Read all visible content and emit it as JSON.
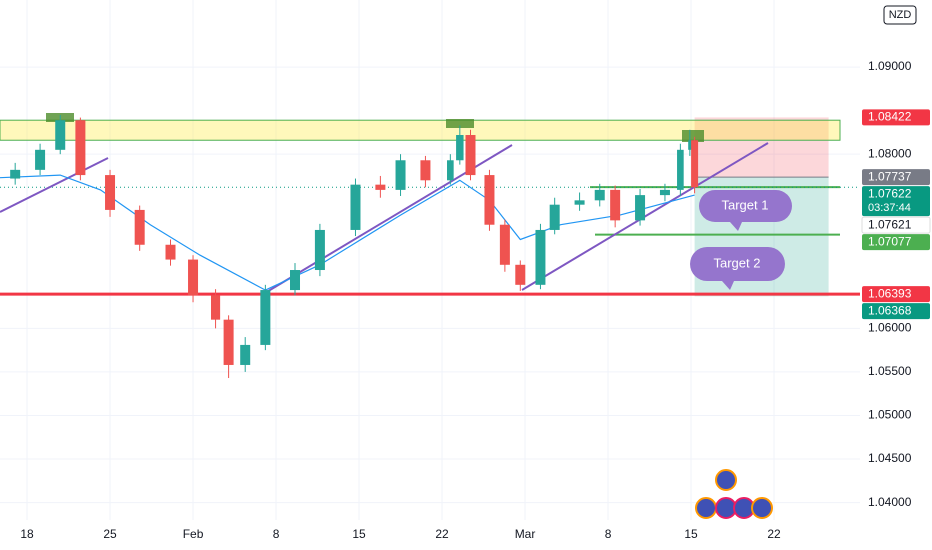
{
  "chart_data": {
    "type": "candlestick",
    "currency": "NZD",
    "x": [
      -1.0,
      1.1,
      2.8,
      4.5,
      7.0,
      9.5,
      12.1,
      14.0,
      15.9,
      17.0,
      18.4,
      20.1,
      22.6,
      24.7,
      27.7,
      29.8,
      31.5,
      33.6,
      35.7,
      36.5,
      37.4,
      39.0,
      40.3,
      41.6,
      43.3,
      44.5,
      46.6,
      48.3,
      49.6,
      51.7,
      53.8,
      55.1,
      55.9,
      56.3
    ],
    "open": [
      1.0772,
      1.0782,
      1.0805,
      1.0839,
      1.0776,
      1.0736,
      1.0696,
      1.0679,
      1.0638,
      1.061,
      1.0558,
      1.0581,
      1.0644,
      1.0667,
      1.0713,
      1.0765,
      1.0759,
      1.0793,
      1.077,
      1.0793,
      1.0822,
      1.0776,
      1.0719,
      1.0673,
      1.065,
      1.0713,
      1.0742,
      1.0747,
      1.0759,
      1.0724,
      1.0753,
      1.0759,
      1.0805,
      1.0816
    ],
    "high": [
      1.079,
      1.0812,
      1.0845,
      1.0842,
      1.0782,
      1.0741,
      1.0702,
      1.0684,
      1.0645,
      1.0615,
      1.059,
      1.065,
      1.0675,
      1.072,
      1.0772,
      1.0775,
      1.08,
      1.0798,
      1.08,
      1.0833,
      1.0828,
      1.0782,
      1.0725,
      1.0678,
      1.072,
      1.075,
      1.0756,
      1.0766,
      1.0764,
      1.076,
      1.0766,
      1.0812,
      1.0828,
      1.082
    ],
    "low": [
      1.0765,
      1.0776,
      1.08,
      1.077,
      1.0728,
      1.0689,
      1.0672,
      1.063,
      1.06,
      1.0543,
      1.055,
      1.0575,
      1.0638,
      1.066,
      1.0706,
      1.075,
      1.0752,
      1.0762,
      1.0765,
      1.0788,
      1.077,
      1.0712,
      1.0665,
      1.0643,
      1.0645,
      1.0708,
      1.0735,
      1.074,
      1.0716,
      1.0718,
      1.0746,
      1.0752,
      1.0798,
      1.0755
    ],
    "close": [
      1.0782,
      1.0805,
      1.0839,
      1.0776,
      1.0736,
      1.0696,
      1.0679,
      1.0638,
      1.061,
      1.0558,
      1.0581,
      1.0644,
      1.0667,
      1.0713,
      1.0765,
      1.0759,
      1.0793,
      1.077,
      1.0793,
      1.0822,
      1.0776,
      1.0719,
      1.0673,
      1.065,
      1.0713,
      1.0742,
      1.0747,
      1.0759,
      1.0724,
      1.0753,
      1.0759,
      1.0805,
      1.0816,
      1.0762
    ],
    "up_color": "#26a69a",
    "down_color": "#ef5350",
    "moving_average": {
      "color": "#2196f3",
      "x": [
        -2.3,
        2.8,
        6.2,
        10.4,
        14.6,
        20.1,
        24.7,
        31.5,
        36.5,
        39.0,
        41.6,
        45.0,
        50.0,
        56.3
      ],
      "values": [
        1.0773,
        1.0776,
        1.0759,
        1.0719,
        1.0684,
        1.0644,
        1.0673,
        1.073,
        1.077,
        1.0747,
        1.0702,
        1.0719,
        1.073,
        1.0753
      ]
    },
    "resistance_zone": [
      1.0816,
      1.0839
    ],
    "support_level": 1.06393,
    "levels": [
      1.07622,
      1.07077
    ],
    "position": {
      "x": [
        56.3,
        67.6
      ],
      "stop": 1.08422,
      "entry": 1.07737,
      "target": 1.06368
    },
    "annotations": [
      "Target 1",
      "Target 2"
    ],
    "xlim": [
      -2.28,
      70.25
    ],
    "ylim": [
      1.038,
      1.0977
    ],
    "xticks": [
      {
        "value": 0,
        "label": "18"
      },
      {
        "value": 7,
        "label": "25"
      },
      {
        "value": 14,
        "label": "Feb"
      },
      {
        "value": 21,
        "label": "8"
      },
      {
        "value": 28,
        "label": "15"
      },
      {
        "value": 35,
        "label": "22"
      },
      {
        "value": 42,
        "label": "Mar"
      },
      {
        "value": 49,
        "label": "8"
      },
      {
        "value": 56,
        "label": "15"
      },
      {
        "value": 63,
        "label": "22"
      }
    ],
    "yticks": [
      {
        "value": 1.04,
        "label": "1.04000"
      },
      {
        "value": 1.045,
        "label": "1.04500"
      },
      {
        "value": 1.05,
        "label": "1.05000"
      },
      {
        "value": 1.055,
        "label": "1.05500"
      },
      {
        "value": 1.06,
        "label": "1.06000"
      },
      {
        "value": 1.08,
        "label": "1.08000"
      },
      {
        "value": 1.09,
        "label": "1.09000"
      }
    ],
    "price_labels": [
      {
        "value": 1.08422,
        "label": "1.08422",
        "color": "#f23645"
      },
      {
        "value": 1.07737,
        "label": "1.07737",
        "color": "#787b86"
      },
      {
        "value": 1.07622,
        "label": "1.07622",
        "color": "#089981",
        "countdown": "03:37:44"
      },
      {
        "value": 1.07621,
        "label": "1.07621",
        "color": "#ffffff"
      },
      {
        "value": 1.07077,
        "label": "1.07077",
        "color": "#4caf50"
      },
      {
        "value": 1.06393,
        "label": "1.06393",
        "color": "#f23645"
      },
      {
        "value": 1.06368,
        "label": "1.06368",
        "color": "#089981"
      }
    ]
  }
}
